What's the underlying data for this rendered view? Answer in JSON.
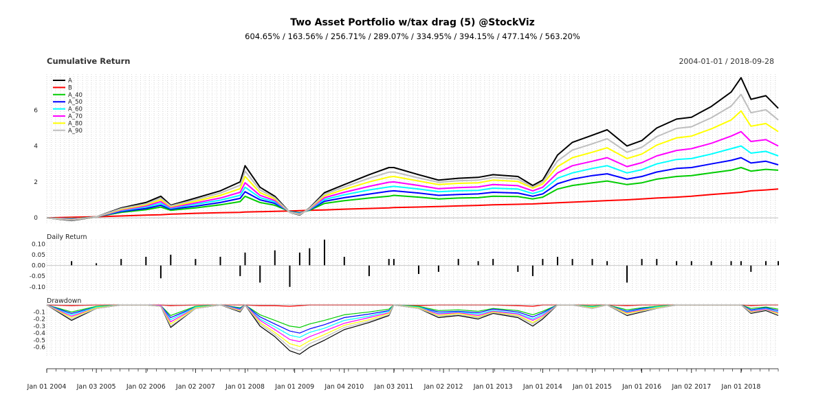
{
  "chart_data": {
    "type": "line",
    "title": "Two Asset Portfolio w/tax drag (5) @StockViz",
    "subtitle": "604.65% / 163.56% / 256.71% / 289.07% / 334.95% / 394.15% / 477.14% / 563.20%",
    "date_range": "2004-01-01 / 2018-09-28",
    "x_tick_labels": [
      "Jan 01 2004",
      "Jan 03 2005",
      "Jan 02 2006",
      "Jan 02 2007",
      "Jan 01 2008",
      "Jan 01 2009",
      "Jan 04 2010",
      "Jan 03 2011",
      "Jan 02 2012",
      "Jan 01 2013",
      "Jan 01 2014",
      "Jan 01 2015",
      "Jan 01 2016",
      "Jan 02 2017",
      "Jan 01 2018"
    ],
    "x": [
      2004.0,
      2004.5,
      2005.0,
      2005.5,
      2006.0,
      2006.3,
      2006.5,
      2007.0,
      2007.5,
      2007.9,
      2008.0,
      2008.3,
      2008.6,
      2008.9,
      2009.1,
      2009.3,
      2009.6,
      2010.0,
      2010.5,
      2010.9,
      2011.0,
      2011.5,
      2011.9,
      2012.3,
      2012.7,
      2013.0,
      2013.5,
      2013.8,
      2014.0,
      2014.3,
      2014.6,
      2015.0,
      2015.3,
      2015.7,
      2016.0,
      2016.3,
      2016.7,
      2017.0,
      2017.4,
      2017.8,
      2018.0,
      2018.2,
      2018.5,
      2018.75
    ],
    "panels": [
      {
        "title": "Cumulative Return",
        "y_ticks": [
          "0",
          "2",
          "4",
          "6"
        ],
        "y_tick_values": [
          0,
          2,
          4,
          6
        ],
        "ylim": [
          -0.3,
          8.0
        ],
        "legend_position": "top-left",
        "series": [
          {
            "name": "A",
            "color": "#000000",
            "values": [
              0.0,
              -0.15,
              0.05,
              0.55,
              0.85,
              1.2,
              0.7,
              1.1,
              1.5,
              2.0,
              2.9,
              1.7,
              1.2,
              0.3,
              0.15,
              0.55,
              1.4,
              1.85,
              2.4,
              2.8,
              2.8,
              2.4,
              2.1,
              2.2,
              2.25,
              2.4,
              2.3,
              1.8,
              2.1,
              3.5,
              4.2,
              4.6,
              4.9,
              4.0,
              4.3,
              5.0,
              5.5,
              5.6,
              6.2,
              7.0,
              7.8,
              6.6,
              6.8,
              6.1
            ]
          },
          {
            "name": "B",
            "color": "#ff0000",
            "values": [
              0.0,
              0.03,
              0.06,
              0.1,
              0.15,
              0.17,
              0.2,
              0.25,
              0.28,
              0.3,
              0.32,
              0.34,
              0.36,
              0.38,
              0.4,
              0.42,
              0.44,
              0.48,
              0.52,
              0.55,
              0.57,
              0.6,
              0.63,
              0.66,
              0.69,
              0.72,
              0.75,
              0.77,
              0.8,
              0.84,
              0.87,
              0.92,
              0.96,
              1.0,
              1.05,
              1.1,
              1.15,
              1.2,
              1.3,
              1.38,
              1.42,
              1.5,
              1.55,
              1.6
            ]
          },
          {
            "name": "A_40",
            "color": "#00cc00",
            "values": [
              0.0,
              -0.06,
              0.05,
              0.3,
              0.45,
              0.6,
              0.42,
              0.55,
              0.72,
              0.9,
              1.2,
              0.85,
              0.7,
              0.35,
              0.28,
              0.42,
              0.8,
              0.95,
              1.1,
              1.2,
              1.25,
              1.15,
              1.05,
              1.1,
              1.12,
              1.2,
              1.18,
              1.05,
              1.15,
              1.6,
              1.8,
              1.95,
              2.05,
              1.85,
              1.95,
              2.15,
              2.3,
              2.35,
              2.5,
              2.65,
              2.8,
              2.6,
              2.7,
              2.65
            ]
          },
          {
            "name": "A_50",
            "color": "#0000ff",
            "values": [
              0.0,
              -0.08,
              0.05,
              0.35,
              0.52,
              0.7,
              0.48,
              0.65,
              0.85,
              1.08,
              1.45,
              1.0,
              0.8,
              0.34,
              0.26,
              0.45,
              0.92,
              1.12,
              1.32,
              1.48,
              1.5,
              1.38,
              1.25,
              1.3,
              1.33,
              1.42,
              1.38,
              1.2,
              1.33,
              1.9,
              2.15,
              2.35,
              2.45,
              2.15,
              2.3,
              2.55,
              2.75,
              2.8,
              3.0,
              3.2,
              3.35,
              3.05,
              3.15,
              2.95
            ]
          },
          {
            "name": "A_60",
            "color": "#00ffff",
            "values": [
              0.0,
              -0.09,
              0.05,
              0.4,
              0.6,
              0.8,
              0.53,
              0.75,
              0.98,
              1.25,
              1.7,
              1.12,
              0.88,
              0.33,
              0.24,
              0.47,
              1.02,
              1.28,
              1.55,
              1.72,
              1.75,
              1.6,
              1.45,
              1.5,
              1.53,
              1.65,
              1.6,
              1.35,
              1.52,
              2.2,
              2.5,
              2.75,
              2.9,
              2.5,
              2.68,
              3.0,
              3.25,
              3.3,
              3.55,
              3.85,
              4.0,
              3.6,
              3.7,
              3.45
            ]
          },
          {
            "name": "A_70",
            "color": "#ff00ff",
            "values": [
              0.0,
              -0.1,
              0.05,
              0.43,
              0.66,
              0.9,
              0.57,
              0.83,
              1.1,
              1.42,
              1.95,
              1.25,
              0.96,
              0.32,
              0.21,
              0.49,
              1.12,
              1.42,
              1.75,
              1.98,
              2.0,
              1.8,
              1.62,
              1.68,
              1.72,
              1.85,
              1.79,
              1.5,
              1.7,
              2.5,
              2.9,
              3.15,
              3.35,
              2.85,
              3.07,
              3.45,
              3.75,
              3.85,
              4.15,
              4.55,
              4.8,
              4.25,
              4.35,
              4.0
            ]
          },
          {
            "name": "A_80",
            "color": "#ffff00",
            "values": [
              0.0,
              -0.12,
              0.05,
              0.47,
              0.72,
              1.0,
              0.62,
              0.92,
              1.25,
              1.62,
              2.3,
              1.4,
              1.05,
              0.31,
              0.19,
              0.51,
              1.22,
              1.58,
              2.0,
              2.27,
              2.3,
              2.05,
              1.85,
              1.92,
              1.95,
              2.1,
              2.02,
              1.65,
              1.88,
              2.85,
              3.35,
              3.65,
              3.9,
              3.3,
              3.55,
              4.05,
              4.45,
              4.55,
              4.95,
              5.45,
              5.95,
              5.1,
              5.25,
              4.8
            ]
          },
          {
            "name": "A_90",
            "color": "#bebebe",
            "values": [
              0.0,
              -0.13,
              0.05,
              0.51,
              0.78,
              1.1,
              0.66,
              1.01,
              1.38,
              1.81,
              2.6,
              1.55,
              1.12,
              0.3,
              0.17,
              0.53,
              1.31,
              1.72,
              2.2,
              2.54,
              2.55,
              2.22,
              1.98,
              2.06,
              2.1,
              2.25,
              2.16,
              1.72,
              1.99,
              3.17,
              3.77,
              4.12,
              4.4,
              3.65,
              3.93,
              4.52,
              4.98,
              5.07,
              5.57,
              6.22,
              6.87,
              5.85,
              6.02,
              5.45
            ]
          }
        ]
      },
      {
        "title": "Daily Return",
        "y_ticks": [
          "0.10",
          "0.05",
          "0.00",
          "-0.05",
          "-0.10"
        ],
        "y_tick_values": [
          0.1,
          0.05,
          0.0,
          -0.05,
          -0.1
        ],
        "ylim": [
          -0.12,
          0.12
        ],
        "series": [
          {
            "name": "A",
            "color": "#000000",
            "values": [
              0.0,
              0.02,
              0.01,
              0.03,
              0.04,
              -0.06,
              0.05,
              0.03,
              0.04,
              -0.05,
              0.06,
              -0.08,
              0.07,
              -0.1,
              0.06,
              0.08,
              0.12,
              0.04,
              -0.05,
              0.03,
              0.03,
              -0.04,
              -0.03,
              0.03,
              0.02,
              0.03,
              -0.03,
              -0.05,
              0.03,
              0.04,
              0.03,
              0.03,
              0.02,
              -0.08,
              0.03,
              0.03,
              0.02,
              0.02,
              0.02,
              0.02,
              0.02,
              -0.03,
              0.02,
              0.02
            ]
          }
        ]
      },
      {
        "title": "Drawdown",
        "y_ticks": [
          "-0.1",
          "-0.2",
          "-0.3",
          "-0.4",
          "-0.5",
          "-0.6"
        ],
        "y_tick_values": [
          -0.1,
          -0.2,
          -0.3,
          -0.4,
          -0.5,
          -0.6
        ],
        "ylim": [
          -0.72,
          0.02
        ],
        "series": [
          {
            "name": "A",
            "color": "#000000",
            "values": [
              0.0,
              -0.22,
              -0.05,
              0.0,
              0.0,
              -0.02,
              -0.32,
              -0.05,
              0.0,
              -0.1,
              0.0,
              -0.3,
              -0.45,
              -0.65,
              -0.7,
              -0.6,
              -0.5,
              -0.35,
              -0.25,
              -0.15,
              0.0,
              -0.05,
              -0.18,
              -0.15,
              -0.2,
              -0.12,
              -0.18,
              -0.3,
              -0.2,
              0.0,
              0.0,
              -0.05,
              0.0,
              -0.15,
              -0.1,
              -0.05,
              0.0,
              0.0,
              0.0,
              0.0,
              0.0,
              -0.12,
              -0.08,
              -0.15
            ]
          },
          {
            "name": "B",
            "color": "#ff0000",
            "values": [
              0.0,
              -0.01,
              0.0,
              0.0,
              0.0,
              0.0,
              -0.01,
              0.0,
              0.0,
              0.0,
              0.0,
              -0.01,
              -0.01,
              -0.02,
              -0.01,
              0.0,
              0.0,
              0.0,
              0.0,
              0.0,
              0.0,
              -0.01,
              0.0,
              0.0,
              0.0,
              0.0,
              -0.01,
              -0.02,
              0.0,
              0.0,
              0.0,
              0.0,
              0.0,
              -0.01,
              0.0,
              0.0,
              0.0,
              0.0,
              0.0,
              0.0,
              0.0,
              -0.01,
              0.0,
              0.0
            ]
          },
          {
            "name": "A_40",
            "color": "#00cc00",
            "values": [
              0.0,
              -0.1,
              -0.02,
              0.0,
              0.0,
              -0.01,
              -0.15,
              -0.02,
              0.0,
              -0.04,
              0.0,
              -0.14,
              -0.22,
              -0.3,
              -0.32,
              -0.27,
              -0.22,
              -0.14,
              -0.1,
              -0.06,
              0.0,
              -0.02,
              -0.08,
              -0.07,
              -0.09,
              -0.05,
              -0.08,
              -0.14,
              -0.09,
              0.0,
              0.0,
              -0.02,
              0.0,
              -0.07,
              -0.04,
              -0.02,
              0.0,
              0.0,
              0.0,
              0.0,
              0.0,
              -0.05,
              -0.03,
              -0.06
            ]
          },
          {
            "name": "A_50",
            "color": "#0000ff",
            "values": [
              0.0,
              -0.12,
              -0.03,
              0.0,
              0.0,
              -0.01,
              -0.18,
              -0.03,
              0.0,
              -0.05,
              0.0,
              -0.17,
              -0.27,
              -0.37,
              -0.4,
              -0.34,
              -0.28,
              -0.18,
              -0.13,
              -0.08,
              0.0,
              -0.03,
              -0.1,
              -0.09,
              -0.11,
              -0.06,
              -0.1,
              -0.17,
              -0.11,
              0.0,
              0.0,
              -0.03,
              0.0,
              -0.09,
              -0.05,
              -0.03,
              0.0,
              0.0,
              0.0,
              0.0,
              0.0,
              -0.07,
              -0.04,
              -0.08
            ]
          },
          {
            "name": "A_60",
            "color": "#00ffff",
            "values": [
              0.0,
              -0.14,
              -0.03,
              0.0,
              0.0,
              -0.01,
              -0.21,
              -0.03,
              0.0,
              -0.06,
              0.0,
              -0.2,
              -0.31,
              -0.43,
              -0.46,
              -0.39,
              -0.33,
              -0.22,
              -0.16,
              -0.09,
              0.0,
              -0.03,
              -0.12,
              -0.1,
              -0.13,
              -0.08,
              -0.12,
              -0.2,
              -0.13,
              0.0,
              0.0,
              -0.03,
              0.0,
              -0.1,
              -0.06,
              -0.03,
              0.0,
              0.0,
              0.0,
              0.0,
              0.0,
              -0.08,
              -0.05,
              -0.1
            ]
          },
          {
            "name": "A_70",
            "color": "#ff00ff",
            "values": [
              0.0,
              -0.16,
              -0.04,
              0.0,
              0.0,
              -0.01,
              -0.24,
              -0.04,
              0.0,
              -0.07,
              0.0,
              -0.22,
              -0.35,
              -0.49,
              -0.52,
              -0.45,
              -0.37,
              -0.26,
              -0.18,
              -0.11,
              0.0,
              -0.04,
              -0.13,
              -0.11,
              -0.15,
              -0.09,
              -0.13,
              -0.22,
              -0.15,
              0.0,
              0.0,
              -0.04,
              0.0,
              -0.11,
              -0.07,
              -0.04,
              0.0,
              0.0,
              0.0,
              0.0,
              0.0,
              -0.09,
              -0.06,
              -0.11
            ]
          },
          {
            "name": "A_80",
            "color": "#ffff00",
            "values": [
              0.0,
              -0.18,
              -0.04,
              0.0,
              0.0,
              -0.02,
              -0.27,
              -0.04,
              0.0,
              -0.08,
              0.0,
              -0.25,
              -0.39,
              -0.55,
              -0.59,
              -0.51,
              -0.42,
              -0.29,
              -0.21,
              -0.12,
              0.0,
              -0.04,
              -0.15,
              -0.12,
              -0.17,
              -0.1,
              -0.15,
              -0.25,
              -0.17,
              0.0,
              0.0,
              -0.04,
              0.0,
              -0.12,
              -0.08,
              -0.04,
              0.0,
              0.0,
              0.0,
              0.0,
              0.0,
              -0.1,
              -0.07,
              -0.12
            ]
          },
          {
            "name": "A_90",
            "color": "#bebebe",
            "values": [
              0.0,
              -0.2,
              -0.05,
              0.0,
              0.0,
              -0.02,
              -0.3,
              -0.05,
              0.0,
              -0.09,
              0.0,
              -0.27,
              -0.42,
              -0.6,
              -0.65,
              -0.55,
              -0.46,
              -0.32,
              -0.23,
              -0.14,
              0.0,
              -0.05,
              -0.16,
              -0.14,
              -0.18,
              -0.11,
              -0.16,
              -0.27,
              -0.18,
              0.0,
              0.0,
              -0.05,
              0.0,
              -0.14,
              -0.09,
              -0.05,
              0.0,
              0.0,
              0.0,
              0.0,
              0.0,
              -0.11,
              -0.07,
              -0.14
            ]
          }
        ]
      }
    ]
  }
}
